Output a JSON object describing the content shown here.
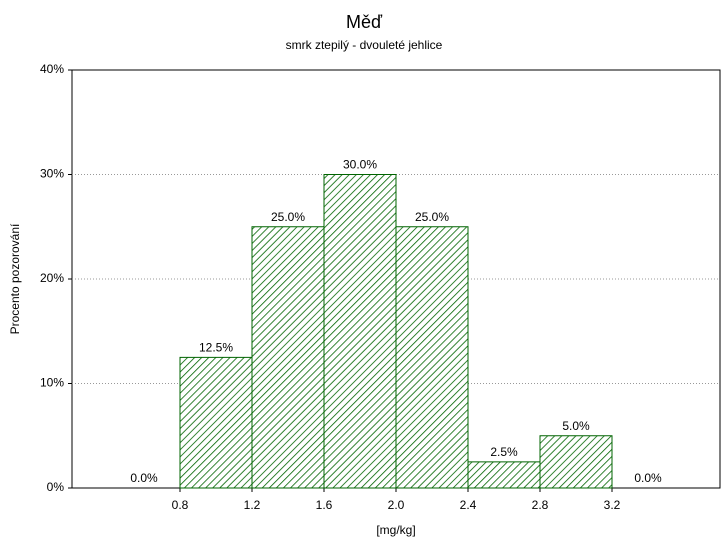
{
  "chart_data": {
    "type": "histogram",
    "title": "Měď",
    "subtitle": "smrk ztepilý - dvouleté jehlice",
    "x_label": "[mg/kg]",
    "y_label": "Procento pozorování",
    "bins": [
      0.4,
      0.8,
      1.2,
      1.6,
      2.0,
      2.4,
      2.8,
      3.2,
      3.6
    ],
    "values": [
      0,
      12.5,
      25,
      30,
      25,
      2.5,
      5,
      0
    ],
    "value_labels": [
      "0.0%",
      "12.5%",
      "25.0%",
      "30.0%",
      "25.0%",
      "2.5%",
      "5.0%",
      "0.0%"
    ],
    "color": "#006400",
    "xlim": [
      0.2,
      3.8
    ],
    "xticks": [
      0.8,
      1.2,
      1.6,
      {
        "value": 2,
        "label": "2.0"
      },
      2.4,
      2.8,
      3.2
    ],
    "ylim": [
      0,
      40
    ],
    "yticks": [
      {
        "value": 0,
        "label": "0%"
      },
      {
        "value": 10,
        "label": "10%"
      },
      {
        "value": 20,
        "label": "20%"
      },
      {
        "value": 30,
        "label": "30%"
      },
      {
        "value": 40,
        "label": "40%"
      }
    ],
    "grid": true
  }
}
